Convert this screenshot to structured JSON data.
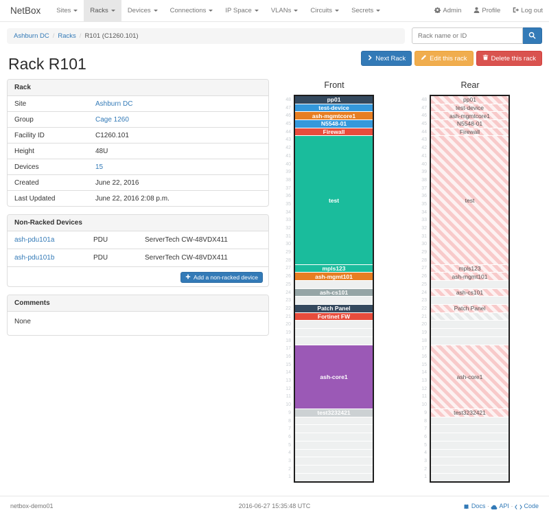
{
  "navbar": {
    "brand": "NetBox",
    "menus": [
      {
        "label": "Sites",
        "active": false
      },
      {
        "label": "Racks",
        "active": true
      },
      {
        "label": "Devices",
        "active": false
      },
      {
        "label": "Connections",
        "active": false
      },
      {
        "label": "IP Space",
        "active": false
      },
      {
        "label": "VLANs",
        "active": false
      },
      {
        "label": "Circuits",
        "active": false
      },
      {
        "label": "Secrets",
        "active": false
      }
    ],
    "right": {
      "admin": "Admin",
      "profile": "Profile",
      "logout": "Log out"
    }
  },
  "breadcrumb": {
    "items": [
      {
        "label": "Ashburn DC",
        "link": true
      },
      {
        "label": "Racks",
        "link": true
      },
      {
        "label": "R101 (C1260.101)",
        "link": false
      }
    ]
  },
  "search": {
    "placeholder": "Rack name or ID"
  },
  "actions": {
    "next_rack": "Next Rack",
    "edit": "Edit this rack",
    "delete": "Delete this rack"
  },
  "page_title": "Rack R101",
  "rack_panel": {
    "title": "Rack",
    "rows": [
      {
        "label": "Site",
        "value": "Ashburn DC",
        "link": true
      },
      {
        "label": "Group",
        "value": "Cage 1260",
        "link": true
      },
      {
        "label": "Facility ID",
        "value": "C1260.101",
        "link": false
      },
      {
        "label": "Height",
        "value": "48U",
        "link": false
      },
      {
        "label": "Devices",
        "value": "15",
        "link": true
      },
      {
        "label": "Created",
        "value": "June 22, 2016",
        "link": false
      },
      {
        "label": "Last Updated",
        "value": "June 22, 2016 2:08 p.m.",
        "link": false
      }
    ]
  },
  "nonracked_panel": {
    "title": "Non-Racked Devices",
    "devices": [
      {
        "name": "ash-pdu101a",
        "role": "PDU",
        "type": "ServerTech CW-48VDX411"
      },
      {
        "name": "ash-pdu101b",
        "role": "PDU",
        "type": "ServerTech CW-48VDX411"
      }
    ],
    "add_button": "Add a non-racked device"
  },
  "comments_panel": {
    "title": "Comments",
    "body": "None"
  },
  "colors": {
    "dark": "#34495e",
    "blue": "#3498db",
    "orange": "#e67e22",
    "red": "#e74c3c",
    "teal": "#1abc9c",
    "gray": "#95a5a6",
    "purple": "#9b59b6",
    "lightgray": "#ccd1d3",
    "accent": "#337ab7",
    "warning": "#f0ad4e",
    "danger": "#d9534f"
  },
  "rack_elevation": {
    "units_total": 48,
    "front": {
      "title": "Front",
      "slots": [
        {
          "span": 1,
          "label": "pp01",
          "color": "dark"
        },
        {
          "span": 1,
          "label": "test-device",
          "color": "blue"
        },
        {
          "span": 1,
          "label": "ash-mgmtcore1",
          "color": "orange"
        },
        {
          "span": 1,
          "label": "N5548-01",
          "color": "blue"
        },
        {
          "span": 1,
          "label": "Firewall",
          "color": "red"
        },
        {
          "span": 16,
          "label": "test",
          "color": "teal"
        },
        {
          "span": 1,
          "label": "mpls123",
          "color": "teal"
        },
        {
          "span": 1,
          "label": "ash-mgmt101",
          "color": "orange"
        },
        {
          "span": 1,
          "label": "",
          "color": "empty"
        },
        {
          "span": 1,
          "label": "ash-cs101",
          "color": "gray"
        },
        {
          "span": 1,
          "label": "",
          "color": "empty"
        },
        {
          "span": 1,
          "label": "Patch Panel",
          "color": "dark"
        },
        {
          "span": 1,
          "label": "Fortinet FW",
          "color": "red"
        },
        {
          "span": 3,
          "label": "",
          "color": "empty"
        },
        {
          "span": 8,
          "label": "ash-core1",
          "color": "purple"
        },
        {
          "span": 1,
          "label": "test3232421",
          "color": "lightgray"
        },
        {
          "span": 8,
          "label": "",
          "color": "empty"
        }
      ]
    },
    "rear": {
      "title": "Rear",
      "slots": [
        {
          "span": 1,
          "label": "pp01",
          "color": "hatch"
        },
        {
          "span": 1,
          "label": "test-device",
          "color": "hatch"
        },
        {
          "span": 1,
          "label": "ash-mgmtcore1",
          "color": "hatch"
        },
        {
          "span": 1,
          "label": "N5548-01",
          "color": "hatch"
        },
        {
          "span": 1,
          "label": "Firewall",
          "color": "hatch"
        },
        {
          "span": 16,
          "label": "test",
          "color": "hatch"
        },
        {
          "span": 1,
          "label": "mpls123",
          "color": "hatch"
        },
        {
          "span": 1,
          "label": "ash-mgmt101",
          "color": "hatch"
        },
        {
          "span": 1,
          "label": "",
          "color": "empty"
        },
        {
          "span": 1,
          "label": "ash-cs101",
          "color": "hatch"
        },
        {
          "span": 1,
          "label": "",
          "color": "empty"
        },
        {
          "span": 1,
          "label": "Patch Panel",
          "color": "hatch"
        },
        {
          "span": 1,
          "label": "",
          "color": "hatch-gray"
        },
        {
          "span": 3,
          "label": "",
          "color": "empty"
        },
        {
          "span": 8,
          "label": "ash-core1",
          "color": "hatch"
        },
        {
          "span": 1,
          "label": "test3232421",
          "color": "hatch"
        },
        {
          "span": 8,
          "label": "",
          "color": "empty"
        }
      ]
    }
  },
  "footer": {
    "hostname": "netbox-demo01",
    "timestamp": "2016-06-27 15:35:48 UTC",
    "links": {
      "docs": "Docs",
      "api": "API",
      "code": "Code"
    }
  }
}
